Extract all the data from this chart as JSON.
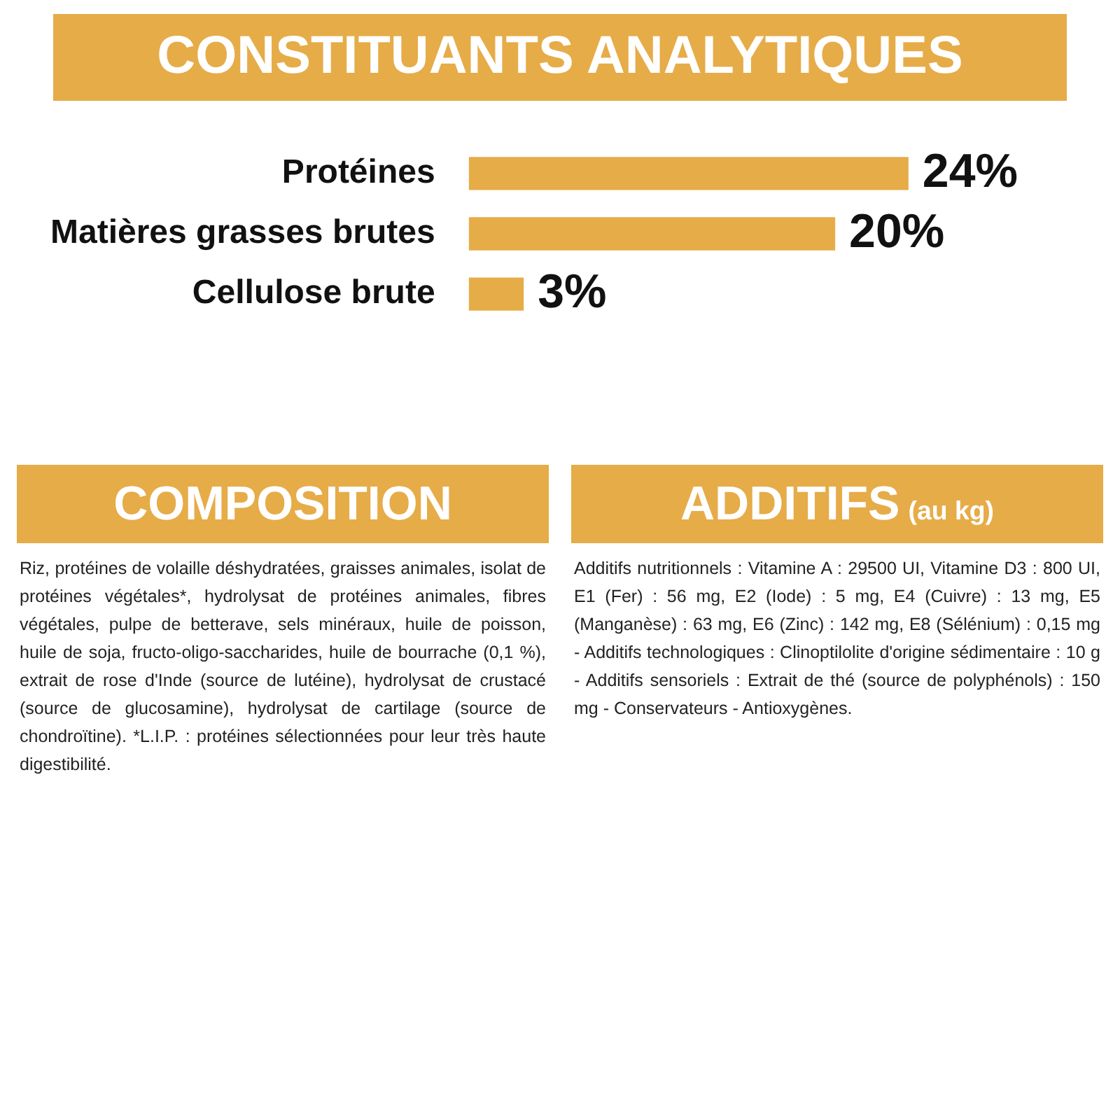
{
  "chart_data": [
    {
      "type": "bar",
      "title": "CONSTITUANTS ANALYTIQUES",
      "orientation": "horizontal",
      "categories": [
        "Protéines",
        "Matières grasses brutes",
        "Cellulose brute"
      ],
      "values": [
        24,
        20,
        3
      ],
      "value_labels": [
        "24%",
        "20%",
        "3%"
      ],
      "color": "#e6ac48"
    },
    {
      "type": "other",
      "title": "COMPOSITION",
      "annotations": [
        "Riz, protéines de volaille déshydratées, graisses animales, isolat de protéines végétales*, hydrolysat de protéines animales, fibres végétales, pulpe de betterave, sels minéraux, huile de poisson, huile de soja, fructo-oligo-saccharides, huile de bourrache (0,1 %), extrait de rose d'Inde (source de lutéine), hydrolysat de crustacé (source de glucosamine), hydrolysat de cartilage (source de chondroïtine). *L.I.P. : protéines sélectionnées pour leur très haute digestibilité."
      ]
    },
    {
      "type": "other",
      "title": "ADDITIFS",
      "subtitle": "(au kg)",
      "annotations": [
        "Additifs nutritionnels : Vitamine A : 29500 UI, Vitamine D3 : 800 UI, E1 (Fer) : 56 mg, E2 (Iode) : 5 mg, E4 (Cuivre) : 13 mg, E5 (Manganèse) : 63 mg, E6 (Zinc) : 142 mg, E8 (Sélénium) : 0,15 mg - Additifs technologiques : Clinoptilolite d'origine sédimentaire : 10 g - Additifs sensoriels : Extrait de thé (source de polyphénols) : 150 mg - Conservateurs - Antioxygènes."
      ]
    }
  ]
}
